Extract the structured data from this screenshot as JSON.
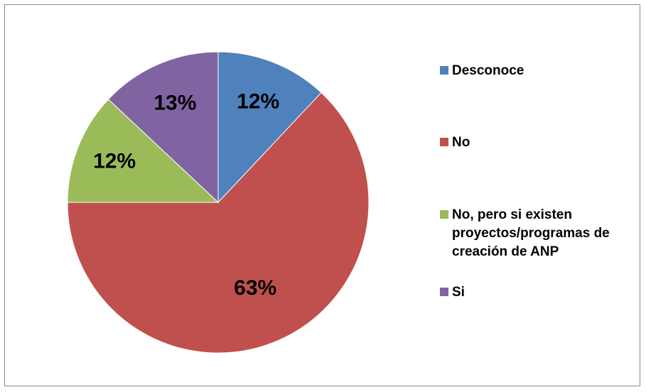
{
  "chart_data": {
    "type": "pie",
    "title": "",
    "slices": [
      {
        "name": "Desconoce",
        "value": 12,
        "label": "12%",
        "color": "#4f81bd"
      },
      {
        "name": "No",
        "value": 63,
        "label": "63%",
        "color": "#c0504d"
      },
      {
        "name": "No, pero si existen proyectos/programas de creación de ANP",
        "value": 12,
        "label": "12%",
        "color": "#9bbb59"
      },
      {
        "name": "Si",
        "value": 13,
        "label": "13%",
        "color": "#8064a2"
      }
    ],
    "legend_position": "right",
    "start_angle": "12 o'clock",
    "direction": "clockwise"
  }
}
